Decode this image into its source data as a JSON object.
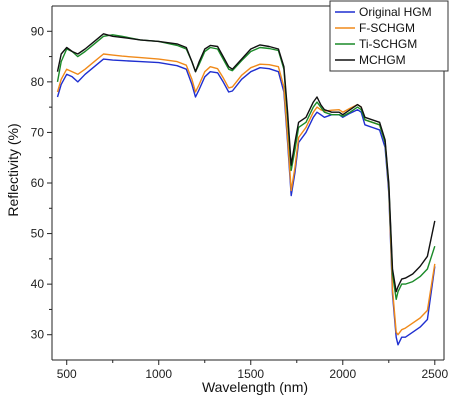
{
  "chart_data": {
    "type": "line",
    "title": "",
    "xlabel": "Wavelength (nm)",
    "ylabel": "Reflectivity (%)",
    "xlim": [
      420,
      2550
    ],
    "ylim": [
      25,
      95
    ],
    "xticks": [
      500,
      1000,
      1500,
      2000,
      2500
    ],
    "yticks": [
      30,
      40,
      50,
      60,
      70,
      80,
      90
    ],
    "grid": false,
    "legend_position": "top-right",
    "series": [
      {
        "name": "Original HGM",
        "color": "#1f2fd0",
        "x": [
          450,
          470,
          500,
          530,
          560,
          600,
          650,
          700,
          750,
          800,
          900,
          1000,
          1100,
          1150,
          1180,
          1200,
          1220,
          1250,
          1280,
          1320,
          1350,
          1380,
          1400,
          1450,
          1500,
          1550,
          1600,
          1650,
          1680,
          1700,
          1720,
          1740,
          1760,
          1800,
          1840,
          1860,
          1880,
          1900,
          1940,
          1980,
          2000,
          2040,
          2080,
          2100,
          2120,
          2160,
          2200,
          2230,
          2250,
          2270,
          2290,
          2300,
          2320,
          2340,
          2380,
          2420,
          2460,
          2500
        ],
        "y": [
          77.0,
          79.5,
          81.5,
          81.0,
          80.0,
          81.5,
          83.0,
          84.5,
          84.3,
          84.2,
          84.0,
          83.8,
          83.2,
          82.5,
          79.5,
          77.0,
          78.5,
          81.0,
          82.0,
          81.8,
          80.0,
          78.0,
          78.2,
          80.5,
          82.0,
          82.8,
          82.6,
          82.0,
          78.0,
          68.0,
          57.5,
          62.0,
          68.0,
          70.0,
          73.0,
          74.0,
          73.5,
          73.0,
          73.5,
          73.5,
          73.0,
          73.8,
          74.5,
          74.0,
          71.5,
          71.0,
          70.5,
          67.0,
          58.0,
          38.0,
          29.5,
          28.0,
          29.5,
          29.5,
          30.5,
          31.5,
          33.0,
          43.5
        ]
      },
      {
        "name": "F-SCHGM",
        "color": "#f08a1a",
        "x": [
          450,
          470,
          500,
          530,
          560,
          600,
          650,
          700,
          750,
          800,
          900,
          1000,
          1100,
          1150,
          1180,
          1200,
          1220,
          1250,
          1280,
          1320,
          1350,
          1380,
          1400,
          1450,
          1500,
          1550,
          1600,
          1650,
          1680,
          1700,
          1720,
          1740,
          1760,
          1800,
          1840,
          1860,
          1880,
          1900,
          1940,
          1980,
          2000,
          2040,
          2080,
          2100,
          2120,
          2160,
          2200,
          2230,
          2250,
          2270,
          2290,
          2300,
          2320,
          2340,
          2380,
          2420,
          2460,
          2500
        ],
        "y": [
          78.0,
          80.5,
          82.5,
          82.0,
          81.5,
          82.5,
          84.0,
          85.5,
          85.3,
          85.1,
          84.8,
          84.5,
          84.0,
          83.3,
          80.5,
          78.0,
          79.5,
          82.0,
          83.0,
          82.6,
          80.8,
          78.8,
          79.0,
          81.3,
          82.8,
          83.5,
          83.4,
          83.0,
          79.0,
          69.0,
          58.5,
          63.0,
          69.0,
          71.0,
          74.0,
          75.0,
          74.5,
          74.2,
          74.4,
          74.5,
          74.0,
          74.8,
          75.5,
          75.0,
          72.5,
          72.0,
          71.5,
          68.0,
          59.0,
          39.0,
          30.5,
          30.0,
          31.0,
          31.3,
          32.3,
          33.3,
          34.8,
          44.0
        ]
      },
      {
        "name": "Ti-SCHGM",
        "color": "#1a8a28",
        "x": [
          450,
          470,
          500,
          530,
          560,
          600,
          650,
          700,
          750,
          800,
          900,
          1000,
          1100,
          1150,
          1180,
          1200,
          1220,
          1250,
          1280,
          1320,
          1350,
          1380,
          1400,
          1450,
          1500,
          1550,
          1600,
          1650,
          1680,
          1700,
          1720,
          1740,
          1760,
          1800,
          1840,
          1860,
          1880,
          1900,
          1940,
          1980,
          2000,
          2040,
          2080,
          2100,
          2120,
          2160,
          2200,
          2230,
          2250,
          2270,
          2290,
          2300,
          2320,
          2340,
          2380,
          2420,
          2460,
          2500
        ],
        "y": [
          80.0,
          84.0,
          86.5,
          86.0,
          85.0,
          86.0,
          87.5,
          89.0,
          89.3,
          89.0,
          88.3,
          88.0,
          87.2,
          86.5,
          84.0,
          82.0,
          83.5,
          86.0,
          86.8,
          86.5,
          84.5,
          82.5,
          82.2,
          84.2,
          86.0,
          86.8,
          86.6,
          86.2,
          82.5,
          73.0,
          62.5,
          66.5,
          71.0,
          72.0,
          75.0,
          76.0,
          75.0,
          74.0,
          73.5,
          73.5,
          73.2,
          74.0,
          75.0,
          74.5,
          72.5,
          72.0,
          71.5,
          68.0,
          59.5,
          42.0,
          37.0,
          38.5,
          40.0,
          40.0,
          40.5,
          41.5,
          43.0,
          47.5
        ]
      },
      {
        "name": "MCHGM",
        "color": "#111111",
        "x": [
          450,
          470,
          500,
          530,
          560,
          600,
          650,
          700,
          750,
          800,
          900,
          1000,
          1100,
          1150,
          1180,
          1200,
          1220,
          1250,
          1280,
          1320,
          1350,
          1380,
          1400,
          1450,
          1500,
          1550,
          1600,
          1650,
          1680,
          1700,
          1720,
          1740,
          1760,
          1800,
          1840,
          1860,
          1880,
          1900,
          1940,
          1980,
          2000,
          2040,
          2080,
          2100,
          2120,
          2160,
          2200,
          2230,
          2250,
          2270,
          2290,
          2300,
          2320,
          2340,
          2380,
          2420,
          2460,
          2500
        ],
        "y": [
          82.0,
          85.5,
          86.8,
          86.0,
          85.5,
          86.5,
          88.0,
          89.5,
          89.0,
          88.8,
          88.3,
          88.0,
          87.5,
          86.8,
          84.0,
          82.0,
          84.0,
          86.5,
          87.2,
          87.0,
          85.0,
          83.0,
          82.5,
          84.5,
          86.5,
          87.3,
          87.0,
          86.5,
          83.0,
          74.0,
          63.5,
          68.0,
          72.0,
          73.0,
          76.0,
          77.0,
          75.5,
          74.5,
          74.0,
          74.0,
          73.5,
          74.5,
          75.5,
          75.0,
          73.0,
          72.5,
          72.0,
          68.5,
          60.0,
          43.0,
          38.5,
          39.5,
          41.0,
          41.2,
          42.0,
          43.5,
          45.5,
          52.5
        ]
      }
    ]
  }
}
